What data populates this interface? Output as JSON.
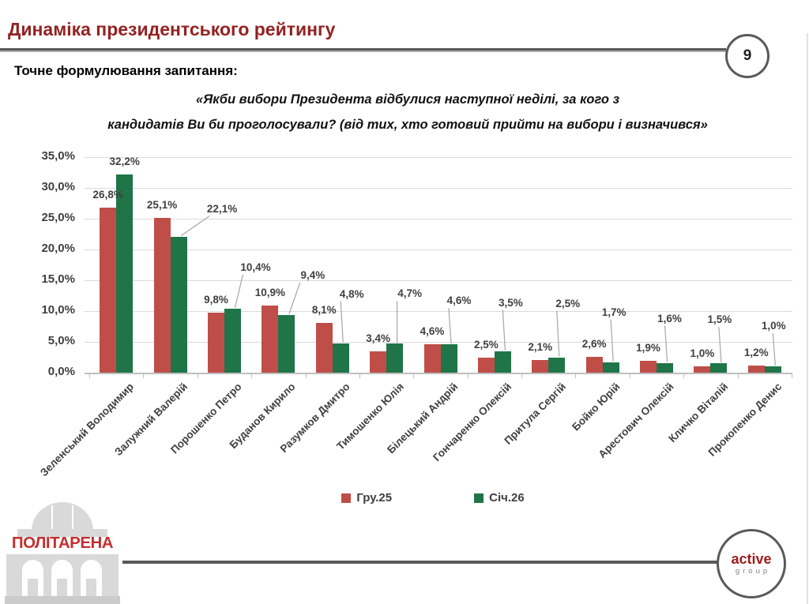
{
  "slide": {
    "title": "Динаміка президентського рейтингу",
    "page_number": "9",
    "question_label": "Точне формулювання запитання:",
    "question_line1": "«Якби вибори Президента відбулися наступної неділі, за кого з",
    "question_line2": "кандидатів Ви би проголосували? (від тих, хто готовий прийти на вибори і визначився»"
  },
  "colors": {
    "series_gru25": "#BF4E49",
    "series_sich26": "#1F7548",
    "title_red": "#942222",
    "chart_text": "#3F3F3F",
    "grid": "#DADADA",
    "axis": "#BFBFBF",
    "callout_line": "#A6A6A6",
    "dark_rule": "#595959",
    "politarena_red": "#C53030",
    "active_red": "#9E1B1B",
    "building_gray": "#D9D9D9"
  },
  "chart_data": {
    "type": "bar",
    "categories": [
      "Зеленський Володимир",
      "Залужний Валерій",
      "Порошенко Петро",
      "Буданов Кирило",
      "Разумков Дмитро",
      "Тимошенко Юлія",
      "Білецький Андрій",
      "Гончаренко Олексій",
      "Притула Сергій",
      "Бойко Юрій",
      "Арестович Олексій",
      "Кличко Віталій",
      "Прокопенко Денис"
    ],
    "series": [
      {
        "name": "Гру.25",
        "color": "#BF4E49",
        "values": [
          26.8,
          25.1,
          9.8,
          10.9,
          8.1,
          3.4,
          4.6,
          2.5,
          2.1,
          2.6,
          1.9,
          1.0,
          1.2
        ],
        "labels": [
          "26,8%",
          "25,1%",
          "9,8%",
          "10,9%",
          "8,1%",
          "3,4%",
          "4,6%",
          "2,5%",
          "2,1%",
          "2,6%",
          "1,9%",
          "1,0%",
          "1,2%"
        ]
      },
      {
        "name": "Січ.26",
        "color": "#1F7548",
        "values": [
          32.2,
          22.1,
          10.4,
          9.4,
          4.8,
          4.7,
          4.6,
          3.5,
          2.5,
          1.7,
          1.6,
          1.5,
          1.0
        ],
        "labels": [
          "32,2%",
          "22,1%",
          "10,4%",
          "9,4%",
          "4,8%",
          "4,7%",
          "4,6%",
          "3,5%",
          "2,5%",
          "1,7%",
          "1,6%",
          "1,5%",
          "1,0%"
        ]
      }
    ],
    "title": "",
    "xlabel": "",
    "ylabel": "",
    "ylim": [
      0,
      35
    ],
    "ytick_labels": [
      "0,0%",
      "5,0%",
      "10,0%",
      "15,0%",
      "20,0%",
      "25,0%",
      "30,0%",
      "35,0%"
    ],
    "grid": true,
    "legend_position": "bottom",
    "value_label_format": "comma-decimal-percent"
  },
  "footer": {
    "politarena_text": "ПОЛІТАРЕНА",
    "active_line1": "active",
    "active_line2": "group"
  }
}
